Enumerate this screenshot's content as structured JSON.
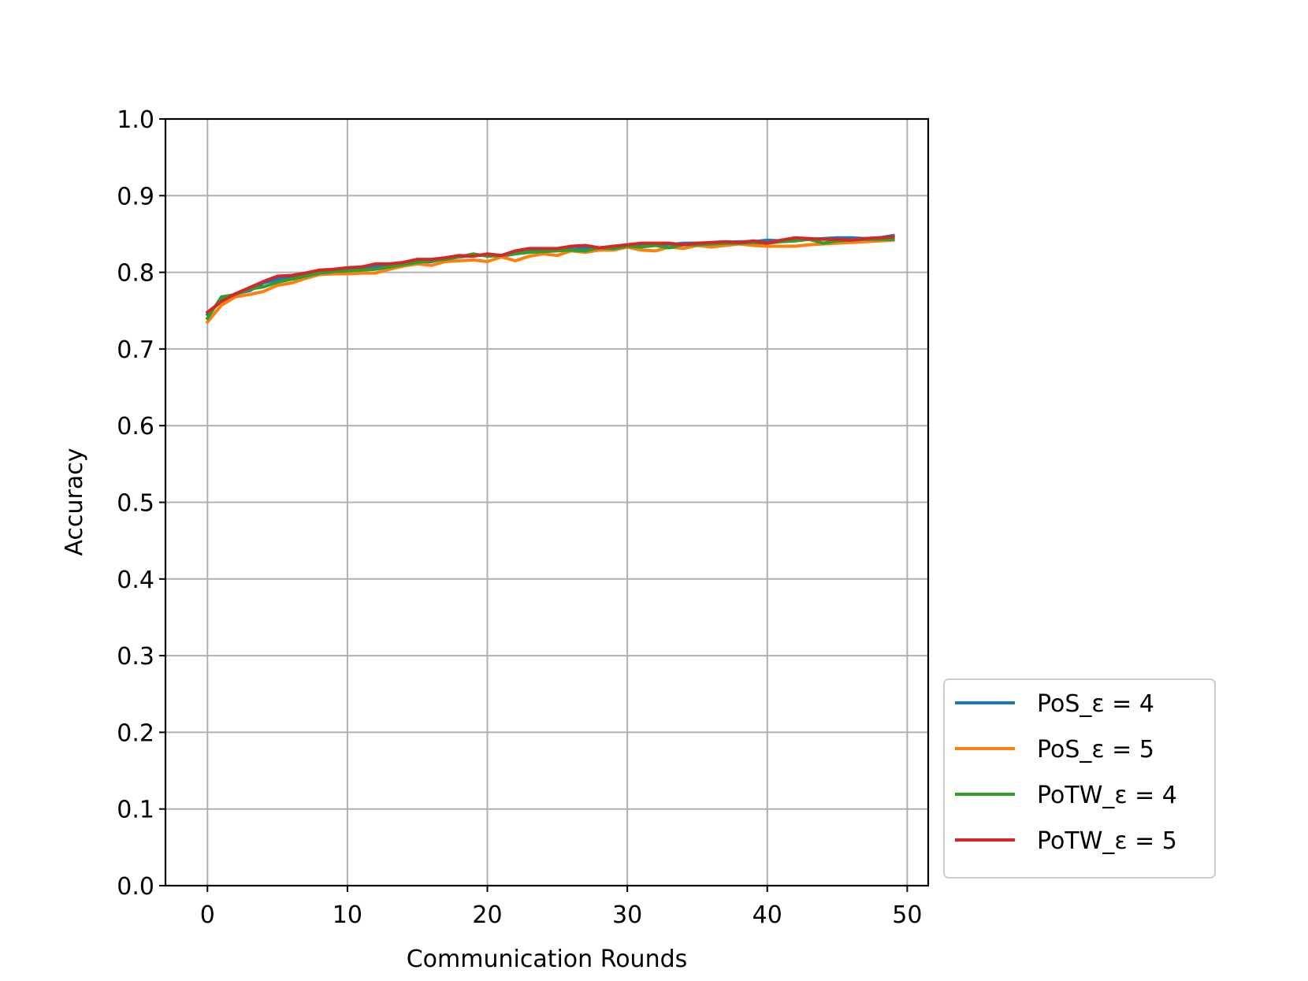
{
  "chart_data": {
    "type": "line",
    "title": "",
    "xlabel": "Communication Rounds",
    "ylabel": "Accuracy",
    "xlim": [
      -3,
      51.5
    ],
    "ylim": [
      0.0,
      1.0
    ],
    "xticks": [
      0,
      10,
      20,
      30,
      40,
      50
    ],
    "xtick_labels": [
      "0",
      "10",
      "20",
      "30",
      "40",
      "50"
    ],
    "yticks": [
      0.0,
      0.1,
      0.2,
      0.3,
      0.4,
      0.5,
      0.6,
      0.7,
      0.8,
      0.9,
      1.0
    ],
    "ytick_labels": [
      "0.0",
      "0.1",
      "0.2",
      "0.3",
      "0.4",
      "0.5",
      "0.6",
      "0.7",
      "0.8",
      "0.9",
      "1.0"
    ],
    "grid": true,
    "legend_position": "outside-lower-right",
    "x": [
      0,
      1,
      2,
      3,
      4,
      5,
      6,
      7,
      8,
      9,
      10,
      11,
      12,
      13,
      14,
      15,
      16,
      17,
      18,
      19,
      20,
      21,
      22,
      23,
      24,
      25,
      26,
      27,
      28,
      29,
      30,
      31,
      32,
      33,
      34,
      35,
      36,
      37,
      38,
      39,
      40,
      41,
      42,
      43,
      44,
      45,
      46,
      47,
      48,
      49
    ],
    "series": [
      {
        "name": "PoS_ε = 4",
        "color": "#1f77b4",
        "values": [
          0.745,
          0.763,
          0.772,
          0.776,
          0.786,
          0.791,
          0.793,
          0.796,
          0.8,
          0.802,
          0.804,
          0.805,
          0.807,
          0.809,
          0.811,
          0.813,
          0.814,
          0.818,
          0.82,
          0.822,
          0.823,
          0.821,
          0.824,
          0.827,
          0.828,
          0.829,
          0.83,
          0.831,
          0.832,
          0.833,
          0.835,
          0.834,
          0.837,
          0.836,
          0.838,
          0.838,
          0.838,
          0.839,
          0.84,
          0.84,
          0.842,
          0.841,
          0.842,
          0.843,
          0.844,
          0.845,
          0.845,
          0.844,
          0.845,
          0.848
        ]
      },
      {
        "name": "PoS_ε = 5",
        "color": "#ff7f0e",
        "values": [
          0.735,
          0.757,
          0.768,
          0.771,
          0.775,
          0.783,
          0.786,
          0.792,
          0.797,
          0.798,
          0.798,
          0.799,
          0.799,
          0.804,
          0.808,
          0.811,
          0.809,
          0.814,
          0.815,
          0.816,
          0.814,
          0.82,
          0.815,
          0.821,
          0.824,
          0.822,
          0.828,
          0.826,
          0.829,
          0.829,
          0.833,
          0.829,
          0.828,
          0.833,
          0.831,
          0.835,
          0.833,
          0.835,
          0.837,
          0.835,
          0.834,
          0.834,
          0.834,
          0.836,
          0.837,
          0.838,
          0.839,
          0.84,
          0.841,
          0.842
        ]
      },
      {
        "name": "PoTW_ε = 4",
        "color": "#2ca02c",
        "values": [
          0.74,
          0.768,
          0.771,
          0.778,
          0.781,
          0.787,
          0.791,
          0.795,
          0.799,
          0.801,
          0.802,
          0.803,
          0.804,
          0.807,
          0.81,
          0.813,
          0.815,
          0.817,
          0.82,
          0.824,
          0.821,
          0.822,
          0.824,
          0.826,
          0.827,
          0.828,
          0.829,
          0.828,
          0.832,
          0.831,
          0.834,
          0.833,
          0.835,
          0.832,
          0.836,
          0.836,
          0.837,
          0.838,
          0.838,
          0.839,
          0.838,
          0.84,
          0.841,
          0.843,
          0.838,
          0.841,
          0.842,
          0.843,
          0.843,
          0.843
        ]
      },
      {
        "name": "PoTW_ε = 5",
        "color": "#d62728",
        "values": [
          0.748,
          0.762,
          0.772,
          0.78,
          0.788,
          0.795,
          0.796,
          0.799,
          0.803,
          0.804,
          0.806,
          0.807,
          0.811,
          0.811,
          0.813,
          0.817,
          0.817,
          0.819,
          0.822,
          0.821,
          0.824,
          0.822,
          0.828,
          0.831,
          0.831,
          0.831,
          0.834,
          0.835,
          0.832,
          0.834,
          0.836,
          0.838,
          0.838,
          0.838,
          0.836,
          0.838,
          0.839,
          0.84,
          0.839,
          0.841,
          0.838,
          0.842,
          0.845,
          0.844,
          0.843,
          0.843,
          0.842,
          0.844,
          0.845,
          0.846
        ]
      }
    ]
  }
}
